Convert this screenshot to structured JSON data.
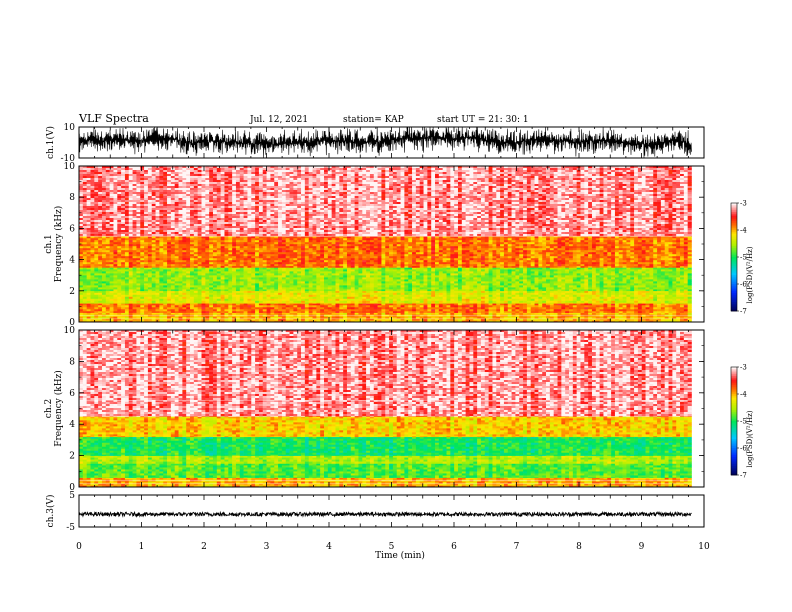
{
  "header": {
    "title": "VLF Spectra",
    "date": "Jul. 12, 2021",
    "station": "station= KAP",
    "start": "start UT =  21: 30: 1"
  },
  "chart_data": [
    {
      "type": "line",
      "name": "ch1-waveform",
      "ylabel": "ch.1(V)",
      "ylim": [
        -10,
        10
      ],
      "y_tick_labels": [
        "10",
        "-10"
      ],
      "x_range_min": [
        0,
        9.8
      ],
      "envelope_v": [
        -10,
        10
      ]
    },
    {
      "type": "heatmap",
      "name": "ch1-spectrogram",
      "ylabel": "ch.1\nFrequency (kHz)",
      "ylim": [
        0,
        10
      ],
      "y_tick_labels": [
        "0",
        "2",
        "4",
        "6",
        "8",
        "10"
      ],
      "x_range_min": [
        0,
        9.8
      ],
      "colorbar": {
        "label": "log(PSD)(V²/Hz)",
        "range": [
          -7,
          -3
        ],
        "tick_labels": [
          "-3",
          "-4",
          "-5",
          "-6",
          "-7"
        ]
      },
      "bands_khz": [
        {
          "from": 0,
          "to": 0.6,
          "level": -4.0
        },
        {
          "from": 0.6,
          "to": 1.2,
          "level": -3.8
        },
        {
          "from": 1.2,
          "to": 2.0,
          "level": -4.3
        },
        {
          "from": 2.0,
          "to": 3.5,
          "level": -4.6
        },
        {
          "from": 3.5,
          "to": 5.5,
          "level": -3.8
        },
        {
          "from": 5.5,
          "to": 10,
          "level": -3.2
        }
      ]
    },
    {
      "type": "heatmap",
      "name": "ch2-spectrogram",
      "ylabel": "ch.2\nFrequency (kHz)",
      "ylim": [
        0,
        10
      ],
      "y_tick_labels": [
        "0",
        "2",
        "4",
        "6",
        "8",
        "10"
      ],
      "x_range_min": [
        0,
        9.8
      ],
      "colorbar": {
        "label": "log(PSD)(V²/Hz)",
        "range": [
          -7,
          -3
        ],
        "tick_labels": [
          "-3",
          "-4",
          "-5",
          "-6",
          "-7"
        ]
      },
      "bands_khz": [
        {
          "from": 0,
          "to": 0.6,
          "level": -4.0
        },
        {
          "from": 0.6,
          "to": 1.5,
          "level": -4.8
        },
        {
          "from": 1.5,
          "to": 2.0,
          "level": -4.5
        },
        {
          "from": 2.0,
          "to": 3.2,
          "level": -5.0
        },
        {
          "from": 3.2,
          "to": 4.5,
          "level": -4.1
        },
        {
          "from": 4.5,
          "to": 10,
          "level": -3.2
        }
      ]
    },
    {
      "type": "line",
      "name": "ch3-waveform",
      "ylabel": "ch.3(V)",
      "ylim": [
        -5,
        5
      ],
      "y_tick_labels": [
        "5",
        "-5"
      ],
      "x_range_min": [
        0,
        9.8
      ],
      "envelope_v": [
        -1.6,
        -0.4
      ]
    }
  ],
  "x_axis": {
    "label": "Time (min)",
    "range": [
      0,
      10
    ],
    "tick_labels": [
      "0",
      "1",
      "2",
      "3",
      "4",
      "5",
      "6",
      "7",
      "8",
      "9",
      "10"
    ]
  },
  "colors": {
    "axis": "#000000",
    "waveform": "#000000"
  }
}
